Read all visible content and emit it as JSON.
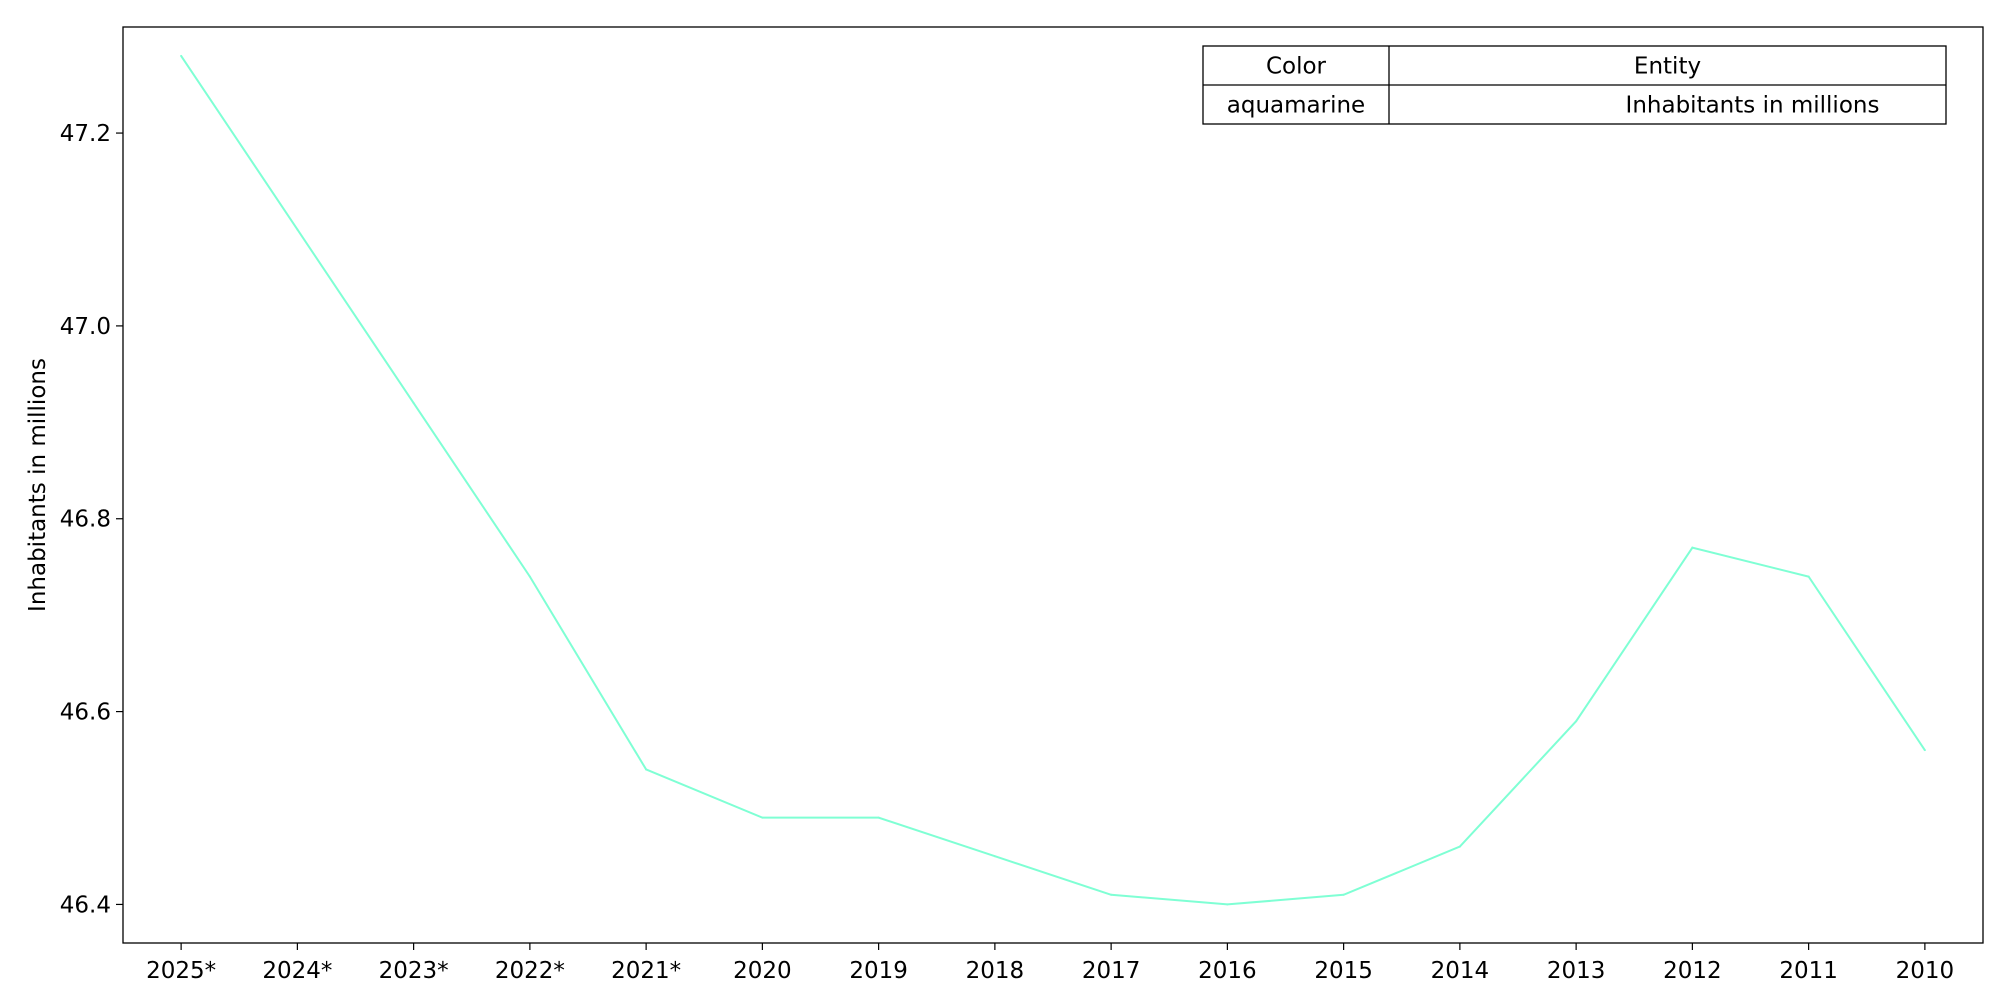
{
  "chart_data": {
    "type": "line",
    "title": "",
    "xlabel": "",
    "ylabel": "Inhabitants in millions",
    "categories": [
      "2025*",
      "2024*",
      "2023*",
      "2022*",
      "2021*",
      "2020",
      "2019",
      "2018",
      "2017",
      "2016",
      "2015",
      "2014",
      "2013",
      "2012",
      "2011",
      "2010"
    ],
    "series": [
      {
        "name": "Inhabitants in millions",
        "color": "#7fffd4",
        "values": [
          47.28,
          47.1,
          46.92,
          46.74,
          46.54,
          46.49,
          46.49,
          46.45,
          46.41,
          46.4,
          46.41,
          46.46,
          46.59,
          46.77,
          46.74,
          46.56
        ]
      }
    ],
    "ylim": [
      46.36,
      47.31
    ],
    "yticks": [
      46.4,
      46.6,
      46.8,
      47.0,
      47.2
    ],
    "ytick_labels": [
      "46.4",
      "46.6",
      "46.8",
      "47.0",
      "47.2"
    ],
    "grid": false,
    "legend": {
      "placement": "top-right",
      "header": [
        "Color",
        "Entity"
      ],
      "rows": [
        [
          "aquamarine",
          "Inhabitants in millions"
        ]
      ]
    }
  }
}
